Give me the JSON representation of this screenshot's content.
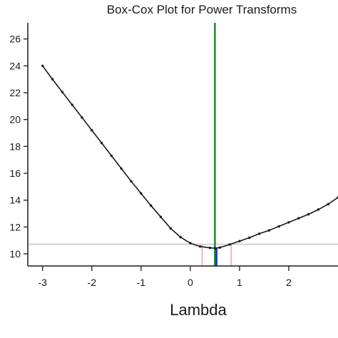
{
  "chart_data": {
    "type": "line",
    "title": "Box-Cox Plot for Power Transforms",
    "xlabel": "Lambda",
    "ylabel": "",
    "xlim": [
      -3.3,
      3.0
    ],
    "ylim": [
      9.1,
      27.2
    ],
    "x_ticks": [
      -3,
      -2,
      -1,
      0,
      1,
      2
    ],
    "x_tick_labels": [
      "-3",
      "-2",
      "-1",
      "0",
      "1",
      "2"
    ],
    "y_ticks": [
      10,
      12,
      14,
      16,
      18,
      20,
      22,
      24,
      26
    ],
    "y_tick_labels": [
      "10",
      "12",
      "14",
      "16",
      "18",
      "20",
      "22",
      "24",
      "26"
    ],
    "grid": false,
    "series": [
      {
        "values_x": [
          -3.0,
          -2.8,
          -2.6,
          -2.4,
          -2.2,
          -2.0,
          -1.8,
          -1.6,
          -1.4,
          -1.2,
          -1.0,
          -0.8,
          -0.6,
          -0.4,
          -0.2,
          0.0,
          0.2,
          0.4,
          0.5,
          0.6,
          0.8,
          1.0,
          1.2,
          1.4,
          1.6,
          1.8,
          2.0,
          2.2,
          2.4,
          2.6,
          2.8,
          3.0
        ],
        "values_y": [
          24.0,
          23.0,
          22.05,
          21.1,
          20.15,
          19.2,
          18.25,
          17.3,
          16.35,
          15.4,
          14.5,
          13.6,
          12.75,
          11.9,
          11.25,
          10.8,
          10.55,
          10.45,
          10.42,
          10.47,
          10.7,
          10.95,
          11.2,
          11.5,
          11.75,
          12.05,
          12.35,
          12.65,
          12.95,
          13.3,
          13.7,
          14.2
        ]
      }
    ],
    "annotations": {
      "confidence_line_y": 10.72,
      "lambda_optimal": 0.5,
      "lambda_estimate": 0.53,
      "ci_lower": 0.24,
      "ci_upper": 0.83
    },
    "colors": {
      "curve": "#1a1a1a",
      "optimal_line": "#1e8a2e",
      "estimate_line": "#1f3fbf",
      "ci_lines": "#f2a0a0",
      "confidence_line": "#c8c8c8",
      "axis": "#1a1a1a"
    }
  }
}
